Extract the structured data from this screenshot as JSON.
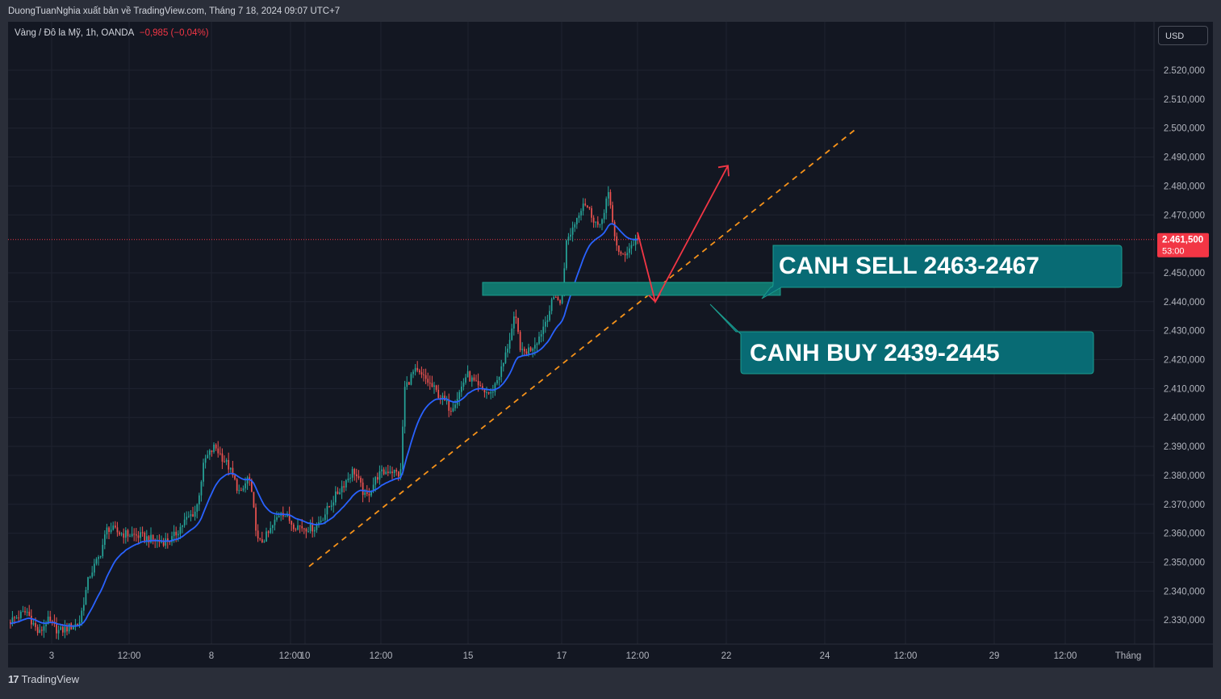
{
  "header": {
    "attribution": "DuongTuanNghia xuất bản về TradingView.com, Tháng 7 18, 2024 09:07 UTC+7"
  },
  "symbol": {
    "name": "Vàng / Đô la Mỹ, 1h, OANDA",
    "change": "−0,985 (−0,04%)"
  },
  "currency_button": "USD",
  "footer": {
    "brand": "TradingView",
    "logo_mark": "17"
  },
  "colors": {
    "background": "#131722",
    "grid": "#1f2330",
    "up_candle": "#26a69a",
    "down_candle": "#ef5350",
    "ema_line": "#2962ff",
    "trendline": "#f7931a",
    "arrow": "#f23645",
    "zone": "#10766d",
    "callout": "#086b74",
    "price_label": "#f23645"
  },
  "annotations": {
    "sell_label": "CANH SELL 2463-2467",
    "buy_label": "CANH BUY 2439-2445"
  },
  "chart_data": {
    "type": "candlestick",
    "title": "Vàng / Đô la Mỹ, 1h, OANDA",
    "ylim": [
      2321,
      2533
    ],
    "y_ticks": [
      {
        "value": 2520,
        "label": "2.520,000"
      },
      {
        "value": 2510,
        "label": "2.510,000"
      },
      {
        "value": 2500,
        "label": "2.500,000"
      },
      {
        "value": 2490,
        "label": "2.490,000"
      },
      {
        "value": 2480,
        "label": "2.480,000"
      },
      {
        "value": 2470,
        "label": "2.470,000"
      },
      {
        "value": 2450,
        "label": "2.450,000"
      },
      {
        "value": 2440,
        "label": "2.440,000"
      },
      {
        "value": 2430,
        "label": "2.430,000"
      },
      {
        "value": 2420,
        "label": "2.420,000"
      },
      {
        "value": 2410,
        "label": "2.410,000"
      },
      {
        "value": 2400,
        "label": "2.400,000"
      },
      {
        "value": 2390,
        "label": "2.390,000"
      },
      {
        "value": 2380,
        "label": "2.380,000"
      },
      {
        "value": 2370,
        "label": "2.370,000"
      },
      {
        "value": 2360,
        "label": "2.360,000"
      },
      {
        "value": 2350,
        "label": "2.350,000"
      },
      {
        "value": 2340,
        "label": "2.340,000"
      },
      {
        "value": 2330,
        "label": "2.330,000"
      }
    ],
    "x_ticks": [
      "3",
      "12:00",
      "8",
      "12:00",
      "10",
      "12:00",
      "15",
      "17",
      "12:00",
      "22",
      "24",
      "12:00",
      "29",
      "12:00",
      "Tháng"
    ],
    "x_tick_index": [
      64,
      160,
      262,
      360,
      378,
      472,
      580,
      696,
      790,
      900,
      1022,
      1122,
      1232,
      1320,
      1406
    ],
    "current_price": {
      "value": 2461.5,
      "label": "2.461,500",
      "countdown": "53:00"
    },
    "series_ohlc_key": [
      "open",
      "high",
      "low",
      "close"
    ],
    "sampled_closes": [
      {
        "x": "Jul 2",
        "close": 2331
      },
      {
        "x": "Jul 3",
        "close": 2328
      },
      {
        "x": "Jul 4",
        "close": 2360
      },
      {
        "x": "Jul 5",
        "close": 2358
      },
      {
        "x": "Jul 8",
        "close": 2390
      },
      {
        "x": "Jul 9",
        "close": 2355
      },
      {
        "x": "Jul 10",
        "close": 2363
      },
      {
        "x": "Jul 11",
        "close": 2372
      },
      {
        "x": "Jul 12",
        "close": 2413
      },
      {
        "x": "Jul 15",
        "close": 2410
      },
      {
        "x": "Jul 16",
        "close": 2422
      },
      {
        "x": "Jul 17",
        "close": 2463
      },
      {
        "x": "Jul 18",
        "close": 2461.5
      }
    ],
    "zone": {
      "low": 2439,
      "high": 2445
    },
    "grid": true
  }
}
